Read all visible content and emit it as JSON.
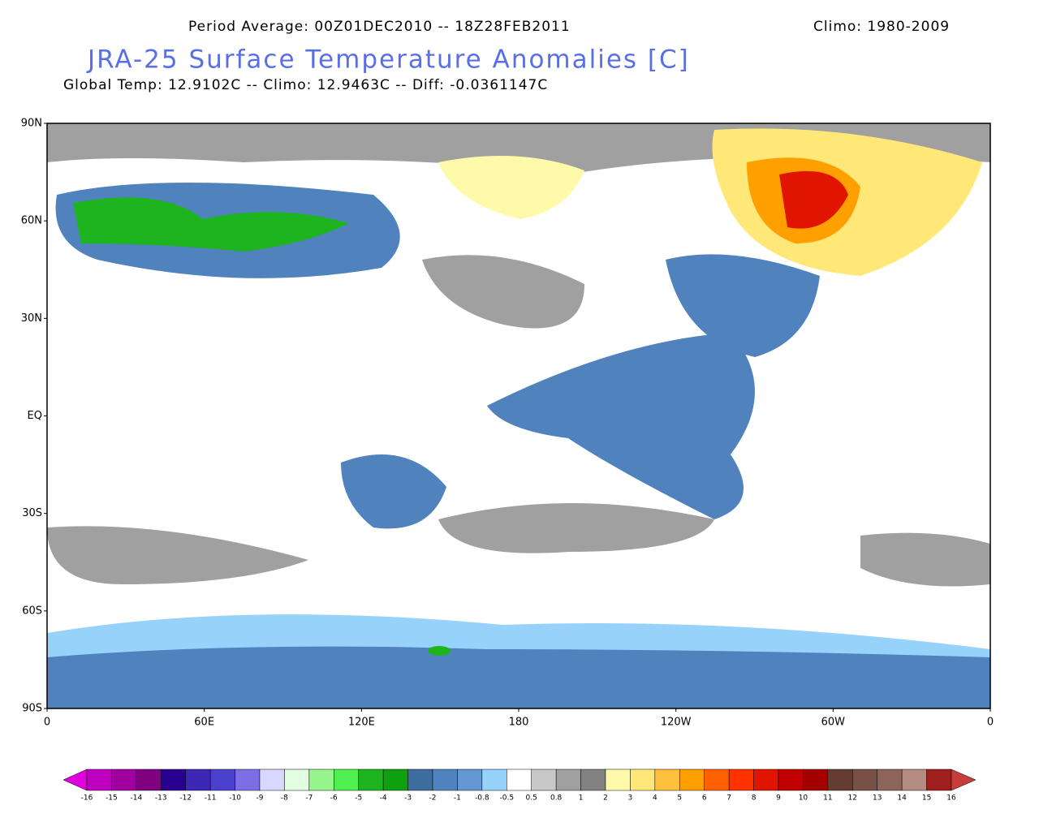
{
  "header": {
    "period": "Period Average: 00Z01DEC2010 -- 18Z28FEB2011",
    "climo": "Climo: 1980-2009",
    "title": "JRA-25 Surface Temperature Anomalies [C]",
    "stats": "Global Temp: 12.9102C -- Climo: 12.9463C -- Diff: -0.0361147C"
  },
  "map": {
    "lat_labels": [
      "90N",
      "60N",
      "30N",
      "EQ",
      "30S",
      "60S",
      "90S"
    ],
    "lon_labels": [
      "0",
      "60E",
      "120E",
      "180",
      "120W",
      "60W",
      "0"
    ]
  },
  "colorbar": {
    "labels": [
      "-16",
      "-15",
      "-14",
      "-13",
      "-12",
      "-11",
      "-10",
      "-9",
      "-8",
      "-7",
      "-6",
      "-5",
      "-4",
      "-3",
      "-2",
      "-1",
      "-0.8",
      "-0.5",
      "0.5",
      "0.8",
      "1",
      "2",
      "3",
      "4",
      "5",
      "6",
      "7",
      "8",
      "9",
      "10",
      "11",
      "12",
      "13",
      "14",
      "15",
      "16"
    ],
    "colors": [
      "#e000e0",
      "#c000c0",
      "#a000a0",
      "#800080",
      "#2a0090",
      "#3c28b4",
      "#4b41cd",
      "#7d6ee6",
      "#d7d7ff",
      "#e1ffe1",
      "#96f58c",
      "#50f050",
      "#1eb41e",
      "#0fa00f",
      "#3c6e9f",
      "#5082be",
      "#6496d2",
      "#96d2fa",
      "#ffffff",
      "#c8c8c8",
      "#a0a0a0",
      "#828282",
      "#fffaaa",
      "#ffe878",
      "#ffc03c",
      "#ffa000",
      "#ff6000",
      "#ff3200",
      "#e11400",
      "#c00000",
      "#a50000",
      "#643c32",
      "#785046",
      "#8c645a",
      "#b48c82",
      "#a01e1e",
      "#c83c3c"
    ]
  }
}
